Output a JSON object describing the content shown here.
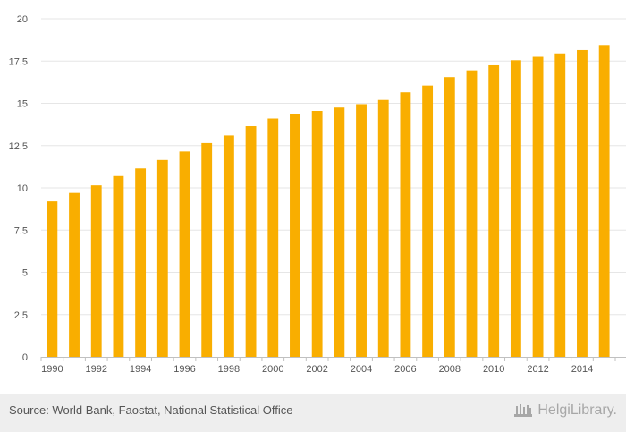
{
  "chart_data": {
    "type": "bar",
    "categories": [
      "1990",
      "1991",
      "1992",
      "1993",
      "1994",
      "1995",
      "1996",
      "1997",
      "1998",
      "1999",
      "2000",
      "2001",
      "2002",
      "2003",
      "2004",
      "2005",
      "2006",
      "2007",
      "2008",
      "2009",
      "2010",
      "2011",
      "2012",
      "2013",
      "2014",
      "2015"
    ],
    "x_tick_labels": [
      "1990",
      "1992",
      "1994",
      "1996",
      "1998",
      "2000",
      "2002",
      "2004",
      "2006",
      "2008",
      "2010",
      "2012",
      "2014"
    ],
    "values": [
      9.2,
      9.7,
      10.15,
      10.7,
      11.15,
      11.65,
      12.15,
      12.65,
      13.1,
      13.65,
      14.1,
      14.35,
      14.55,
      14.75,
      14.95,
      15.2,
      15.65,
      16.05,
      16.55,
      16.95,
      17.25,
      17.55,
      17.75,
      17.95,
      18.15,
      18.45
    ],
    "ylim": [
      0,
      20
    ],
    "y_ticks": [
      "0",
      "2.5",
      "5",
      "7.5",
      "10",
      "12.5",
      "15",
      "17.5",
      "20"
    ],
    "y_tick_values": [
      0,
      2.5,
      5,
      7.5,
      10,
      12.5,
      15,
      17.5,
      20
    ],
    "bar_color": "#f9ae00",
    "grid": true,
    "title": "",
    "xlabel": "",
    "ylabel": ""
  },
  "footer": {
    "source": "Source: World Bank, Faostat, National Statistical Office",
    "brand": "HelgiLibrary."
  },
  "colors": {
    "grid": "#e6e6e6",
    "axis": "#c0c0c0",
    "footer_bg": "#eeeeee",
    "brand": "#a7a7a7"
  }
}
